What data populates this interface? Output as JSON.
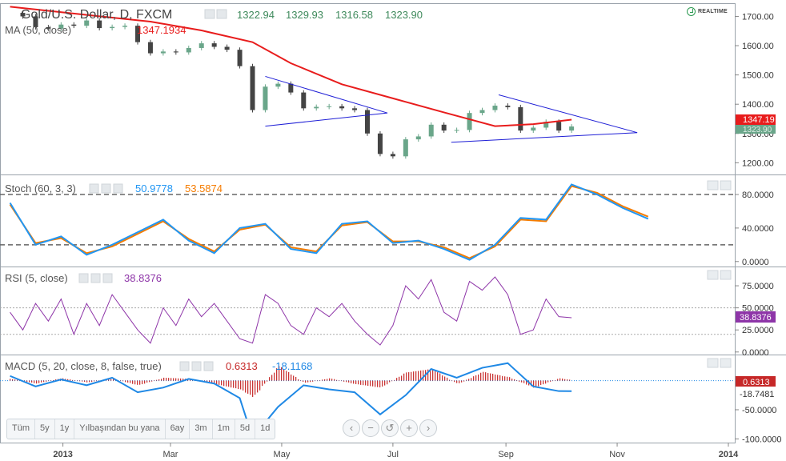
{
  "header": {
    "symbol": "Gold/U.S. Dollar, D, FXCM",
    "open": "1322.94",
    "high": "1329.93",
    "low": "1316.58",
    "close": "1323.90",
    "realtime": "REALTIME"
  },
  "indicators": {
    "ma_label": "MA (50, close)",
    "ma_value": "1347.1934",
    "stoch_label": "Stoch (60, 3, 3)",
    "stoch_k": "50.9778",
    "stoch_d": "53.5874",
    "rsi_label": "RSI (5, close)",
    "rsi_value": "38.8376",
    "macd_label": "MACD (5, 20, close, 8, false, true)",
    "macd_hist": "0.6313",
    "macd_line": "-18.1168"
  },
  "price_tags": {
    "ma": "1347.19",
    "close": "1323.90",
    "rsi": "38.8376",
    "macd_hist": "0.6313",
    "macd_line": "-18.7481"
  },
  "ranges": [
    "Tüm",
    "5y",
    "1y",
    "Yılbaşından bu yana",
    "6ay",
    "3m",
    "1m",
    "5d",
    "1d"
  ],
  "nav": [
    "‹",
    "−",
    "↺",
    "+",
    "›"
  ],
  "colors": {
    "ma": "#e81c1c",
    "stoch_k": "#2196f3",
    "stoch_d": "#f57c00",
    "rsi": "#8e35a8",
    "macd": "#1e88e5",
    "hist": "#c62828",
    "trend": "#1f1fd6",
    "candle_up": "#6aa68a",
    "candle_down": "#444444"
  },
  "chart_data": [
    {
      "type": "candlestick",
      "title": "Gold/U.S. Dollar, D, FXCM",
      "x_ticks": [
        "2013",
        "Mar",
        "May",
        "Jul",
        "Sep",
        "Nov",
        "2014"
      ],
      "y_ticks": [
        "1700.00",
        "1600.00",
        "1500.00",
        "1400.00",
        "1300.00",
        "1200.00"
      ],
      "ylim": [
        1160,
        1745
      ],
      "close_series": [
        [
          "2012-12-03",
          1712
        ],
        [
          "2012-12-10",
          1700
        ],
        [
          "2012-12-17",
          1663
        ],
        [
          "2012-12-24",
          1658
        ],
        [
          "2012-12-31",
          1672
        ],
        [
          "2013-01-07",
          1668
        ],
        [
          "2013-01-14",
          1686
        ],
        [
          "2013-01-21",
          1660
        ],
        [
          "2013-01-28",
          1664
        ],
        [
          "2013-02-04",
          1668
        ],
        [
          "2013-02-11",
          1612
        ],
        [
          "2013-02-18",
          1574
        ],
        [
          "2013-02-25",
          1580
        ],
        [
          "2013-03-04",
          1577
        ],
        [
          "2013-03-11",
          1592
        ],
        [
          "2013-03-18",
          1608
        ],
        [
          "2013-03-25",
          1596
        ],
        [
          "2013-04-01",
          1586
        ],
        [
          "2013-04-08",
          1530
        ],
        [
          "2013-04-15",
          1380
        ],
        [
          "2013-04-22",
          1460
        ],
        [
          "2013-04-29",
          1470
        ],
        [
          "2013-05-06",
          1440
        ],
        [
          "2013-05-13",
          1386
        ],
        [
          "2013-05-20",
          1391
        ],
        [
          "2013-05-27",
          1393
        ],
        [
          "2013-06-03",
          1386
        ],
        [
          "2013-06-10",
          1380
        ],
        [
          "2013-06-17",
          1300
        ],
        [
          "2013-06-24",
          1230
        ],
        [
          "2013-07-01",
          1222
        ],
        [
          "2013-07-08",
          1280
        ],
        [
          "2013-07-15",
          1290
        ],
        [
          "2013-07-22",
          1330
        ],
        [
          "2013-07-29",
          1310
        ],
        [
          "2013-08-05",
          1312
        ],
        [
          "2013-08-12",
          1370
        ],
        [
          "2013-08-19",
          1380
        ],
        [
          "2013-08-26",
          1395
        ],
        [
          "2013-09-02",
          1390
        ],
        [
          "2013-09-09",
          1310
        ],
        [
          "2013-09-16",
          1320
        ],
        [
          "2013-09-23",
          1340
        ],
        [
          "2013-09-30",
          1310
        ],
        [
          "2013-10-07",
          1323.9
        ]
      ],
      "ma50": [
        [
          "2012-12-03",
          1733
        ],
        [
          "2013-01-14",
          1705
        ],
        [
          "2013-02-18",
          1682
        ],
        [
          "2013-03-18",
          1652
        ],
        [
          "2013-04-15",
          1612
        ],
        [
          "2013-05-06",
          1540
        ],
        [
          "2013-06-03",
          1468
        ],
        [
          "2013-07-01",
          1420
        ],
        [
          "2013-07-29",
          1372
        ],
        [
          "2013-08-26",
          1325
        ],
        [
          "2013-09-16",
          1332
        ],
        [
          "2013-10-07",
          1347.19
        ]
      ],
      "trendlines": [
        {
          "from": [
            "2013-04-22",
            1495
          ],
          "to": [
            "2013-06-28",
            1370
          ]
        },
        {
          "from": [
            "2013-04-22",
            1325
          ],
          "to": [
            "2013-06-28",
            1370
          ]
        },
        {
          "from": [
            "2013-08-28",
            1432
          ],
          "to": [
            "2013-11-12",
            1303
          ]
        },
        {
          "from": [
            "2013-08-02",
            1270
          ],
          "to": [
            "2013-11-12",
            1303
          ]
        }
      ]
    },
    {
      "type": "line",
      "title": "Stoch (60, 3, 3)",
      "y_ticks": [
        "80.0000",
        "40.0000",
        "0.0000"
      ],
      "ylim": [
        -5,
        102
      ],
      "levels": [
        80,
        20
      ],
      "series": [
        {
          "name": "50.9778",
          "values": [
            [
              "2012-12-03",
              70
            ],
            [
              "2012-12-17",
              20
            ],
            [
              "2012-12-31",
              30
            ],
            [
              "2013-01-14",
              8
            ],
            [
              "2013-01-28",
              20
            ],
            [
              "2013-02-11",
              35
            ],
            [
              "2013-02-25",
              50
            ],
            [
              "2013-03-11",
              25
            ],
            [
              "2013-03-25",
              10
            ],
            [
              "2013-04-08",
              40
            ],
            [
              "2013-04-22",
              45
            ],
            [
              "2013-05-06",
              15
            ],
            [
              "2013-05-20",
              10
            ],
            [
              "2013-06-03",
              45
            ],
            [
              "2013-06-17",
              48
            ],
            [
              "2013-07-01",
              22
            ],
            [
              "2013-07-15",
              25
            ],
            [
              "2013-07-29",
              15
            ],
            [
              "2013-08-12",
              2
            ],
            [
              "2013-08-26",
              20
            ],
            [
              "2013-09-09",
              52
            ],
            [
              "2013-09-23",
              50
            ],
            [
              "2013-10-07",
              92
            ],
            [
              "2013-10-21",
              80
            ],
            [
              "2013-11-04",
              64
            ],
            [
              "2013-11-18",
              50.98
            ]
          ]
        },
        {
          "name": "53.5874",
          "values": [
            [
              "2012-12-03",
              68
            ],
            [
              "2012-12-17",
              22
            ],
            [
              "2012-12-31",
              28
            ],
            [
              "2013-01-14",
              10
            ],
            [
              "2013-01-28",
              18
            ],
            [
              "2013-02-11",
              33
            ],
            [
              "2013-02-25",
              48
            ],
            [
              "2013-03-11",
              27
            ],
            [
              "2013-03-25",
              12
            ],
            [
              "2013-04-08",
              38
            ],
            [
              "2013-04-22",
              44
            ],
            [
              "2013-05-06",
              17
            ],
            [
              "2013-05-20",
              12
            ],
            [
              "2013-06-03",
              43
            ],
            [
              "2013-06-17",
              47
            ],
            [
              "2013-07-01",
              24
            ],
            [
              "2013-07-15",
              24
            ],
            [
              "2013-07-29",
              17
            ],
            [
              "2013-08-12",
              4
            ],
            [
              "2013-08-26",
              18
            ],
            [
              "2013-09-09",
              50
            ],
            [
              "2013-09-23",
              48
            ],
            [
              "2013-10-07",
              90
            ],
            [
              "2013-10-21",
              82
            ],
            [
              "2013-11-04",
              66
            ],
            [
              "2013-11-18",
              53.59
            ]
          ]
        }
      ]
    },
    {
      "type": "line",
      "title": "RSI (5, close)",
      "y_ticks": [
        "75.0000",
        "50.0000",
        "25.0000",
        "0.0000"
      ],
      "ylim": [
        -2,
        95
      ],
      "levels": [
        50,
        20
      ],
      "series": [
        {
          "name": "38.8376",
          "values": [
            [
              "2012-12-03",
              45
            ],
            [
              "2012-12-10",
              25
            ],
            [
              "2012-12-17",
              55
            ],
            [
              "2012-12-24",
              35
            ],
            [
              "2012-12-31",
              60
            ],
            [
              "2013-01-07",
              20
            ],
            [
              "2013-01-14",
              55
            ],
            [
              "2013-01-21",
              30
            ],
            [
              "2013-01-28",
              65
            ],
            [
              "2013-02-04",
              45
            ],
            [
              "2013-02-11",
              25
            ],
            [
              "2013-02-18",
              10
            ],
            [
              "2013-02-25",
              50
            ],
            [
              "2013-03-04",
              30
            ],
            [
              "2013-03-11",
              60
            ],
            [
              "2013-03-18",
              40
            ],
            [
              "2013-03-25",
              55
            ],
            [
              "2013-04-01",
              35
            ],
            [
              "2013-04-08",
              15
            ],
            [
              "2013-04-15",
              10
            ],
            [
              "2013-04-22",
              65
            ],
            [
              "2013-04-29",
              55
            ],
            [
              "2013-05-06",
              30
            ],
            [
              "2013-05-13",
              20
            ],
            [
              "2013-05-20",
              50
            ],
            [
              "2013-05-27",
              40
            ],
            [
              "2013-06-03",
              55
            ],
            [
              "2013-06-10",
              35
            ],
            [
              "2013-06-17",
              20
            ],
            [
              "2013-06-24",
              8
            ],
            [
              "2013-07-01",
              30
            ],
            [
              "2013-07-08",
              75
            ],
            [
              "2013-07-15",
              60
            ],
            [
              "2013-07-22",
              82
            ],
            [
              "2013-07-29",
              45
            ],
            [
              "2013-08-05",
              35
            ],
            [
              "2013-08-12",
              80
            ],
            [
              "2013-08-19",
              70
            ],
            [
              "2013-08-26",
              85
            ],
            [
              "2013-09-02",
              65
            ],
            [
              "2013-09-09",
              20
            ],
            [
              "2013-09-16",
              25
            ],
            [
              "2013-09-23",
              60
            ],
            [
              "2013-09-30",
              40
            ],
            [
              "2013-10-07",
              38.84
            ]
          ]
        }
      ]
    },
    {
      "type": "bar",
      "title": "MACD (5, 20, close, 8, false, true)",
      "y_ticks": [
        "-50.0000",
        "-100.0000"
      ],
      "ylim": [
        -105,
        42
      ],
      "series": [
        {
          "name": "0.6313",
          "values": [
            [
              "2012-12-03",
              3
            ],
            [
              "2012-12-17",
              -5
            ],
            [
              "2012-12-31",
              4
            ],
            [
              "2013-01-14",
              -3
            ],
            [
              "2013-01-28",
              3
            ],
            [
              "2013-02-11",
              -8
            ],
            [
              "2013-02-25",
              5
            ],
            [
              "2013-03-11",
              3
            ],
            [
              "2013-03-25",
              -6
            ],
            [
              "2013-04-08",
              -15
            ],
            [
              "2013-04-15",
              -28
            ],
            [
              "2013-04-29",
              25
            ],
            [
              "2013-05-13",
              -4
            ],
            [
              "2013-05-27",
              4
            ],
            [
              "2013-06-10",
              -6
            ],
            [
              "2013-06-24",
              -12
            ],
            [
              "2013-07-08",
              14
            ],
            [
              "2013-07-22",
              20
            ],
            [
              "2013-08-05",
              -6
            ],
            [
              "2013-08-19",
              15
            ],
            [
              "2013-09-02",
              6
            ],
            [
              "2013-09-16",
              -12
            ],
            [
              "2013-09-30",
              4
            ],
            [
              "2013-10-07",
              0.63
            ]
          ]
        },
        {
          "name": "18.1168",
          "values": [
            [
              "2012-12-03",
              8
            ],
            [
              "2012-12-17",
              -10
            ],
            [
              "2012-12-31",
              2
            ],
            [
              "2013-01-14",
              -8
            ],
            [
              "2013-01-28",
              5
            ],
            [
              "2013-02-11",
              -20
            ],
            [
              "2013-02-25",
              -12
            ],
            [
              "2013-03-11",
              3
            ],
            [
              "2013-03-25",
              -5
            ],
            [
              "2013-04-08",
              -30
            ],
            [
              "2013-04-15",
              -98
            ],
            [
              "2013-04-29",
              -45
            ],
            [
              "2013-05-13",
              -8
            ],
            [
              "2013-05-27",
              -15
            ],
            [
              "2013-06-10",
              -20
            ],
            [
              "2013-06-24",
              -58
            ],
            [
              "2013-07-08",
              -25
            ],
            [
              "2013-07-22",
              20
            ],
            [
              "2013-08-05",
              5
            ],
            [
              "2013-08-19",
              22
            ],
            [
              "2013-09-02",
              30
            ],
            [
              "2013-09-16",
              -10
            ],
            [
              "2013-09-30",
              -18
            ],
            [
              "2013-10-07",
              -18.12
            ]
          ]
        }
      ]
    }
  ]
}
